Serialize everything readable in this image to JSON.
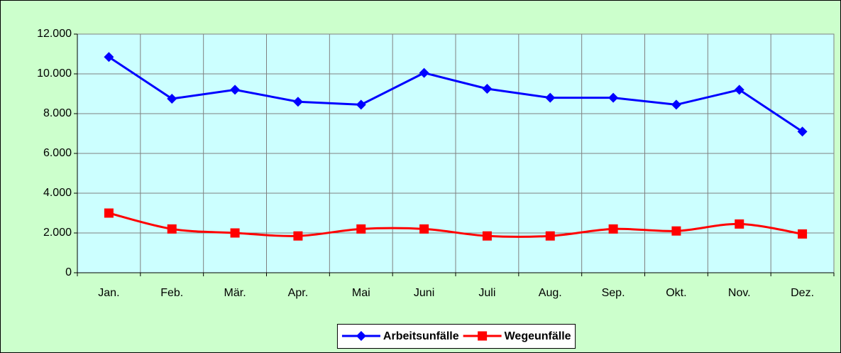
{
  "chart_data": {
    "type": "line",
    "categories": [
      "Jan.",
      "Feb.",
      "Mär.",
      "Apr.",
      "Mai",
      "Juni",
      "Juli",
      "Aug.",
      "Sep.",
      "Okt.",
      "Nov.",
      "Dez."
    ],
    "series": [
      {
        "name": "Arbeitsunfälle",
        "color": "#0000ff",
        "marker": "diamond",
        "smooth": false,
        "values": [
          10850,
          8750,
          9200,
          8600,
          8450,
          10050,
          9250,
          8800,
          8800,
          8450,
          9200,
          7100
        ]
      },
      {
        "name": "Wegeunfälle",
        "color": "#ff0000",
        "marker": "square",
        "smooth": true,
        "values": [
          3000,
          2200,
          2000,
          1850,
          2200,
          2200,
          1850,
          1850,
          2200,
          2100,
          2450,
          1950
        ]
      }
    ],
    "ylim": [
      0,
      12000
    ],
    "yticks": [
      0,
      {
        "value": 2000,
        "label": "2.000"
      },
      {
        "value": 4000,
        "label": "4.000"
      },
      {
        "value": 6000,
        "label": "6.000"
      },
      {
        "value": 8000,
        "label": "8.000"
      },
      {
        "value": 10000,
        "label": "10.000"
      },
      {
        "value": 12000,
        "label": "12.000"
      }
    ],
    "grid": true,
    "legend": "bottom"
  }
}
